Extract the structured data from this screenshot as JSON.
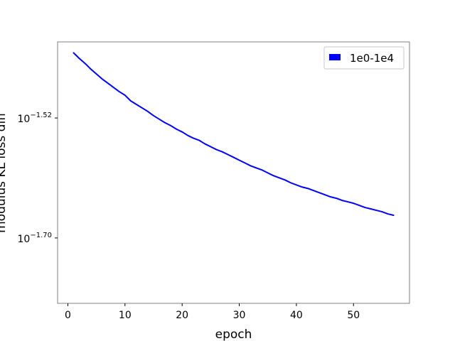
{
  "chart_data": {
    "type": "line",
    "title": "",
    "xlabel": "epoch",
    "ylabel": "modulus KL loss diff",
    "y_scale": "log",
    "xlim": [
      -1.8,
      59.8
    ],
    "ylim_log10": [
      -1.7982,
      -1.4058
    ],
    "x_ticks": [
      0,
      10,
      20,
      30,
      40,
      50
    ],
    "x_tick_labels": [
      "0",
      "10",
      "20",
      "30",
      "40",
      "50"
    ],
    "y_ticks_log10": [
      -1.52,
      -1.7
    ],
    "y_tick_labels": [
      {
        "base": "10",
        "exponent": "−1.52"
      },
      {
        "base": "10",
        "exponent": "−1.70"
      }
    ],
    "grid": false,
    "legend_position": "top-right",
    "series": [
      {
        "name": "1e0-1e4",
        "color": "#0000ff",
        "x": [
          1,
          2,
          3,
          4,
          5,
          6,
          7,
          8,
          9,
          10,
          11,
          12,
          13,
          14,
          15,
          16,
          17,
          18,
          19,
          20,
          21,
          22,
          23,
          24,
          25,
          26,
          27,
          28,
          29,
          30,
          31,
          32,
          33,
          34,
          35,
          36,
          37,
          38,
          39,
          40,
          41,
          42,
          43,
          44,
          45,
          46,
          47,
          48,
          49,
          50,
          51,
          52,
          53,
          54,
          55,
          56,
          57
        ],
        "log10_y": [
          -1.4222,
          -1.4306,
          -1.438,
          -1.4465,
          -1.4539,
          -1.4614,
          -1.4677,
          -1.4741,
          -1.4805,
          -1.4858,
          -1.4943,
          -1.4996,
          -1.5049,
          -1.5102,
          -1.5165,
          -1.5218,
          -1.5271,
          -1.5314,
          -1.5367,
          -1.5409,
          -1.5462,
          -1.5504,
          -1.5536,
          -1.5589,
          -1.5631,
          -1.5674,
          -1.5706,
          -1.5748,
          -1.579,
          -1.5833,
          -1.5875,
          -1.5918,
          -1.595,
          -1.5981,
          -1.6024,
          -1.6066,
          -1.6098,
          -1.613,
          -1.6172,
          -1.6204,
          -1.6236,
          -1.6257,
          -1.6289,
          -1.632,
          -1.6352,
          -1.6384,
          -1.6405,
          -1.6437,
          -1.6458,
          -1.648,
          -1.6511,
          -1.6543,
          -1.6564,
          -1.6586,
          -1.6607,
          -1.6639,
          -1.666
        ]
      }
    ]
  }
}
